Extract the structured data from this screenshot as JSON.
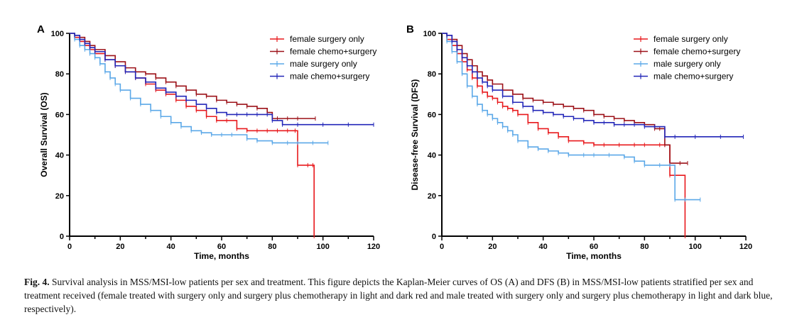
{
  "caption": {
    "label": "Fig. 4.",
    "text": "Survival analysis in MSS/MSI-low patients per sex and treatment. This figure depicts the Kaplan-Meier curves of OS (A) and DFS (B) in MSS/MSI-low patients stratified per sex and treatment received (female treated with surgery only and surgery plus chemotherapy in light and dark red and male treated with surgery only and surgery plus chemotherapy in light and dark blue, respectively)."
  },
  "chart_data": [
    {
      "type": "line",
      "panel": "A",
      "xlabel": "Time, months",
      "ylabel": "Overall Survival (OS)",
      "xlim": [
        0,
        120
      ],
      "ylim": [
        0,
        100
      ],
      "xticks": [
        0,
        20,
        40,
        60,
        80,
        100,
        120
      ],
      "yticks": [
        0,
        20,
        40,
        60,
        80,
        100
      ],
      "step": true,
      "grid": false,
      "legend": "top-right",
      "series": [
        {
          "name": "female surgery only",
          "color": "#e8191c",
          "x": [
            0,
            2,
            4,
            6,
            8,
            10,
            14,
            18,
            22,
            26,
            30,
            34,
            38,
            42,
            46,
            50,
            54,
            58,
            62,
            66,
            70,
            74,
            78,
            82,
            86,
            89,
            90,
            94,
            96,
            96.5
          ],
          "y": [
            100,
            98,
            96,
            94,
            92,
            90,
            87,
            84,
            81,
            78,
            75,
            72,
            70,
            67,
            64,
            62,
            59,
            57,
            57,
            53,
            52,
            52,
            52,
            52,
            52,
            52,
            35,
            35,
            35,
            0
          ]
        },
        {
          "name": "female chemo+surgery",
          "color": "#9c1118",
          "x": [
            0,
            2,
            4,
            6,
            8,
            10,
            14,
            18,
            22,
            26,
            30,
            34,
            38,
            42,
            46,
            50,
            54,
            58,
            62,
            66,
            70,
            74,
            78,
            80,
            82,
            86,
            90,
            97
          ],
          "y": [
            100,
            99,
            98,
            96,
            94,
            92,
            89,
            86,
            83,
            81,
            80,
            78,
            76,
            74,
            72,
            70,
            69,
            67,
            66,
            65,
            64,
            63,
            61,
            58,
            58,
            58,
            58,
            58
          ]
        },
        {
          "name": "male surgery only",
          "color": "#5ba8e8",
          "x": [
            0,
            2,
            4,
            6,
            8,
            10,
            12,
            14,
            16,
            18,
            20,
            24,
            28,
            32,
            36,
            40,
            44,
            48,
            52,
            56,
            60,
            64,
            70,
            74,
            80,
            86,
            90,
            96,
            102
          ],
          "y": [
            100,
            97,
            94,
            92,
            90,
            88,
            85,
            81,
            78,
            75,
            72,
            68,
            65,
            62,
            59,
            56,
            54,
            52,
            51,
            50,
            50,
            50,
            48,
            47,
            46,
            46,
            46,
            46,
            46
          ]
        },
        {
          "name": "male chemo+surgery",
          "color": "#2226b8",
          "x": [
            0,
            2,
            4,
            6,
            8,
            10,
            14,
            18,
            22,
            26,
            30,
            34,
            38,
            42,
            46,
            50,
            54,
            58,
            62,
            66,
            70,
            74,
            78,
            80,
            84,
            90,
            100,
            110,
            120
          ],
          "y": [
            100,
            99,
            97,
            95,
            93,
            91,
            87,
            84,
            81,
            78,
            76,
            73,
            71,
            69,
            67,
            65,
            63,
            61,
            60,
            60,
            60,
            60,
            60,
            57,
            55,
            55,
            55,
            55,
            55
          ]
        }
      ]
    },
    {
      "type": "line",
      "panel": "B",
      "xlabel": "Time, months",
      "ylabel": "Disease-free Survival (DFS)",
      "xlim": [
        0,
        120
      ],
      "ylim": [
        0,
        100
      ],
      "xticks": [
        0,
        20,
        40,
        60,
        80,
        100,
        120
      ],
      "yticks": [
        0,
        20,
        40,
        60,
        80,
        100
      ],
      "step": true,
      "grid": false,
      "legend": "top-right",
      "series": [
        {
          "name": "female surgery only",
          "color": "#e8191c",
          "x": [
            0,
            2,
            4,
            6,
            8,
            10,
            12,
            14,
            16,
            18,
            20,
            22,
            24,
            26,
            28,
            30,
            34,
            38,
            42,
            46,
            50,
            56,
            60,
            64,
            70,
            76,
            80,
            86,
            88,
            90,
            92,
            96
          ],
          "y": [
            100,
            97,
            94,
            90,
            86,
            82,
            78,
            74,
            71,
            69,
            68,
            66,
            64,
            63,
            62,
            60,
            56,
            53,
            51,
            49,
            47,
            46,
            45,
            45,
            45,
            45,
            45,
            45,
            45,
            30,
            30,
            0
          ]
        },
        {
          "name": "female chemo+surgery",
          "color": "#9c1118",
          "x": [
            0,
            2,
            4,
            6,
            8,
            10,
            12,
            14,
            16,
            18,
            20,
            24,
            28,
            32,
            36,
            40,
            44,
            48,
            52,
            56,
            60,
            64,
            68,
            72,
            76,
            80,
            84,
            86,
            88,
            90,
            94,
            97
          ],
          "y": [
            100,
            99,
            97,
            94,
            90,
            87,
            84,
            81,
            79,
            77,
            75,
            72,
            70,
            68,
            67,
            66,
            65,
            64,
            63,
            62,
            60,
            59,
            58,
            57,
            56,
            55,
            53,
            53,
            45,
            36,
            36,
            36
          ]
        },
        {
          "name": "male surgery only",
          "color": "#5ba8e8",
          "x": [
            0,
            2,
            4,
            6,
            8,
            10,
            12,
            14,
            16,
            18,
            20,
            22,
            24,
            26,
            28,
            30,
            34,
            38,
            42,
            46,
            50,
            56,
            60,
            66,
            72,
            76,
            80,
            86,
            90,
            92,
            96,
            102
          ],
          "y": [
            100,
            96,
            91,
            86,
            80,
            74,
            69,
            65,
            62,
            60,
            58,
            56,
            54,
            52,
            50,
            47,
            44,
            43,
            42,
            41,
            40,
            40,
            40,
            40,
            39,
            37,
            35,
            35,
            35,
            18,
            18,
            18
          ]
        },
        {
          "name": "male chemo+surgery",
          "color": "#2226b8",
          "x": [
            0,
            2,
            4,
            6,
            8,
            10,
            12,
            14,
            16,
            18,
            20,
            24,
            28,
            32,
            36,
            40,
            44,
            48,
            52,
            56,
            60,
            64,
            68,
            72,
            76,
            80,
            84,
            88,
            92,
            100,
            110,
            119
          ],
          "y": [
            100,
            99,
            96,
            92,
            88,
            84,
            81,
            78,
            76,
            74,
            72,
            69,
            66,
            64,
            62,
            61,
            60,
            59,
            58,
            57,
            56,
            56,
            55,
            55,
            55,
            54,
            54,
            49,
            49,
            49,
            49,
            49
          ]
        }
      ]
    }
  ]
}
